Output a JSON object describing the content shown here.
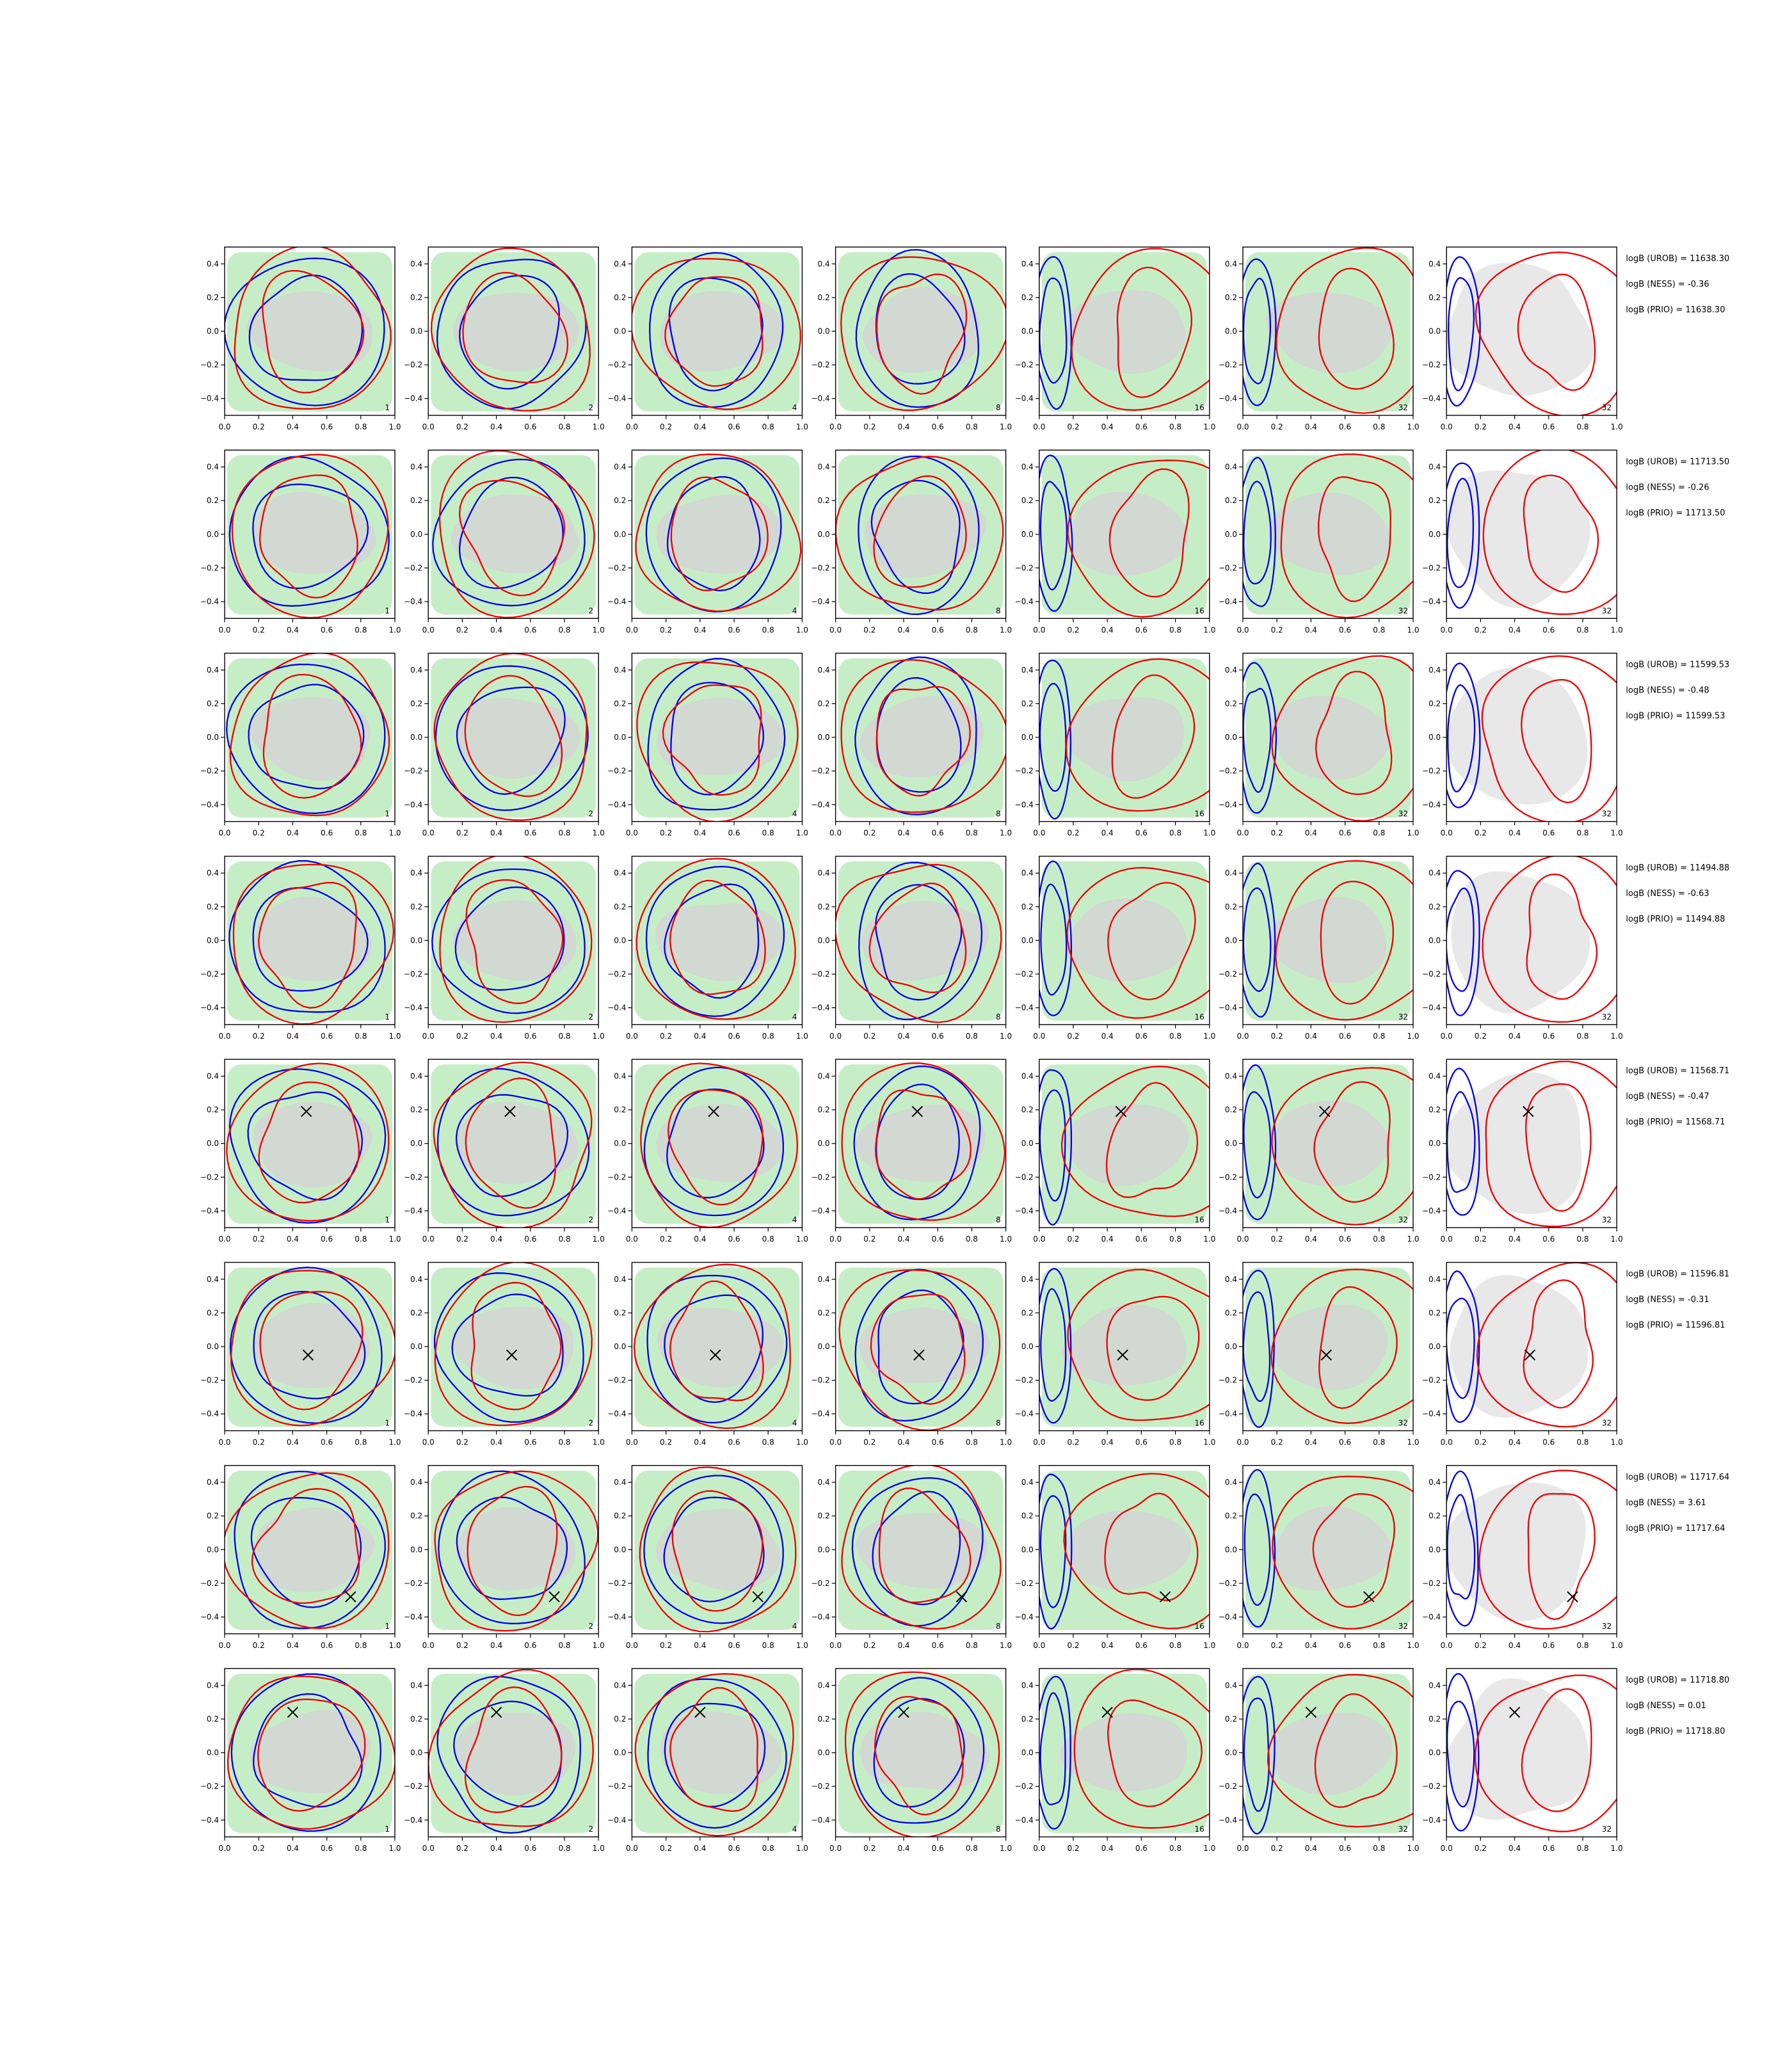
{
  "colors": {
    "green_fill": "#c6eec6",
    "grey_fill": "#d4d4d4",
    "light_grey": "#e8e8e8",
    "blue_line": "#0000ee",
    "red_line": "#ee0000",
    "marker": "#000000"
  },
  "chart_data": {
    "type": "contour",
    "rows": 8,
    "columns": 7,
    "x_ticks": [
      "0.0",
      "0.2",
      "0.4",
      "0.6",
      "0.8",
      "1.0"
    ],
    "y_ticks": [
      "0.4",
      "0.2",
      "0.0",
      "−0.2",
      "−0.4"
    ],
    "xlim": [
      0.0,
      1.0
    ],
    "ylim": [
      -0.5,
      0.5
    ],
    "panel_labels": [
      "1",
      "2",
      "4",
      "8",
      "16",
      "32",
      "32"
    ],
    "grid": false,
    "rows_data": [
      {
        "stats": [
          "logB (UROB) = 11638.30",
          "logB (NESS) = -0.36",
          "logB (PRIO) = 11638.30"
        ],
        "marker": null
      },
      {
        "stats": [
          "logB (UROB) = 11713.50",
          "logB (NESS) = -0.26",
          "logB (PRIO) = 11713.50"
        ],
        "marker": null
      },
      {
        "stats": [
          "logB (UROB) = 11599.53",
          "logB (NESS) = -0.48",
          "logB (PRIO) = 11599.53"
        ],
        "marker": null
      },
      {
        "stats": [
          "logB (UROB) = 11494.88",
          "logB (NESS) = -0.63",
          "logB (PRIO) = 11494.88"
        ],
        "marker": null
      },
      {
        "stats": [
          "logB (UROB) = 11568.71",
          "logB (NESS) = -0.47",
          "logB (PRIO) = 11568.71"
        ],
        "marker": [
          0.48,
          0.19
        ]
      },
      {
        "stats": [
          "logB (UROB) = 11596.81",
          "logB (NESS) = -0.31",
          "logB (PRIO) = 11596.81"
        ],
        "marker": [
          0.49,
          -0.05
        ]
      },
      {
        "stats": [
          "logB (UROB) = 11717.64",
          "logB (NESS) = 3.61",
          "logB (PRIO) = 11717.64"
        ],
        "marker": [
          0.74,
          -0.28
        ]
      },
      {
        "stats": [
          "logB (UROB) = 11718.80",
          "logB (NESS) = 0.01",
          "logB (PRIO) = 11718.80"
        ],
        "marker": [
          0.4,
          0.24
        ]
      }
    ]
  }
}
